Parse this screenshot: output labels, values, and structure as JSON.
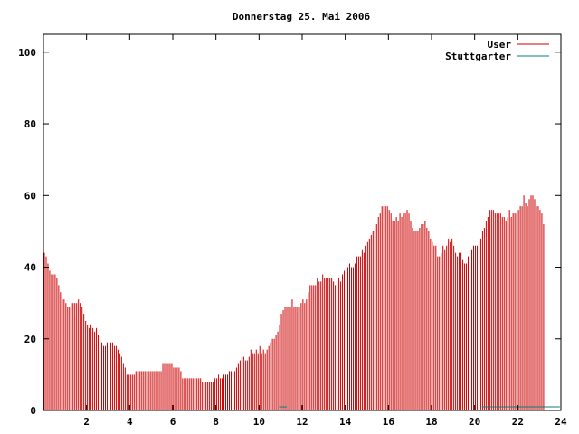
{
  "chart_data": {
    "type": "bar",
    "title": "Donnerstag 25. Mai 2006",
    "xlabel": "",
    "ylabel": "",
    "xlim": [
      0,
      24
    ],
    "ylim": [
      0,
      105
    ],
    "x_ticks": [
      2,
      4,
      6,
      8,
      10,
      12,
      14,
      16,
      18,
      20,
      22,
      24
    ],
    "x_tick_labels": [
      "2",
      "4",
      "6",
      "8",
      "10",
      "12",
      "14",
      "16",
      "18",
      "20",
      "22",
      "24"
    ],
    "y_ticks": [
      0,
      20,
      40,
      60,
      80,
      100
    ],
    "y_tick_labels": [
      "0",
      "20",
      "40",
      "60",
      "80",
      "100"
    ],
    "grid": false,
    "legend_position": "top-right",
    "series": [
      {
        "name": "User",
        "color": "#cc0000",
        "interval_hours": 0.0833,
        "values": [
          44,
          43,
          41,
          39,
          38,
          38,
          38,
          37,
          35,
          33,
          31,
          31,
          30,
          29,
          29,
          30,
          30,
          30,
          30,
          31,
          30,
          29,
          27,
          25,
          24,
          23,
          24,
          23,
          22,
          23,
          21,
          20,
          19,
          18,
          18,
          19,
          18,
          19,
          19,
          18,
          18,
          17,
          16,
          15,
          13,
          12,
          10,
          10,
          10,
          10,
          10,
          11,
          11,
          11,
          11,
          11,
          11,
          11,
          11,
          11,
          11,
          11,
          11,
          11,
          11,
          11,
          13,
          13,
          13,
          13,
          13,
          13,
          12,
          12,
          12,
          12,
          11,
          9,
          9,
          9,
          9,
          9,
          9,
          9,
          9,
          9,
          9,
          9,
          8,
          8,
          8,
          8,
          8,
          8,
          8,
          9,
          9,
          10,
          9,
          9,
          10,
          10,
          10,
          11,
          11,
          11,
          11,
          12,
          13,
          14,
          15,
          15,
          14,
          14,
          15,
          17,
          16,
          16,
          17,
          16,
          18,
          16,
          17,
          16,
          17,
          18,
          19,
          20,
          20,
          21,
          22,
          24,
          27,
          28,
          29,
          29,
          29,
          29,
          31,
          29,
          29,
          29,
          29,
          30,
          31,
          30,
          31,
          33,
          35,
          35,
          35,
          35,
          37,
          36,
          36,
          38,
          37,
          37,
          37,
          37,
          37,
          36,
          35,
          36,
          37,
          36,
          38,
          39,
          38,
          40,
          41,
          40,
          40,
          41,
          43,
          43,
          43,
          45,
          44,
          46,
          47,
          48,
          49,
          50,
          50,
          52,
          54,
          55,
          57,
          57,
          57,
          57,
          56,
          55,
          53,
          53,
          54,
          53,
          55,
          54,
          55,
          55,
          56,
          55,
          53,
          51,
          50,
          50,
          50,
          51,
          52,
          52,
          53,
          51,
          50,
          48,
          47,
          46,
          46,
          43,
          43,
          44,
          46,
          45,
          46,
          48,
          47,
          48,
          46,
          44,
          43,
          44,
          44,
          42,
          41,
          41,
          43,
          44,
          45,
          46,
          46,
          46,
          47,
          48,
          50,
          51,
          53,
          54,
          56,
          56,
          56,
          55,
          55,
          55,
          55,
          54,
          54,
          53,
          54,
          56,
          54,
          55,
          55,
          55,
          56,
          57,
          57,
          60,
          58,
          57,
          59,
          60,
          60,
          59,
          57,
          57,
          56,
          55,
          52
        ]
      },
      {
        "name": "Stuttgarter",
        "color": "#008080",
        "segments": [
          [
            10.92,
            11.29,
            1
          ],
          [
            20.33,
            23.95,
            1
          ]
        ]
      }
    ]
  }
}
